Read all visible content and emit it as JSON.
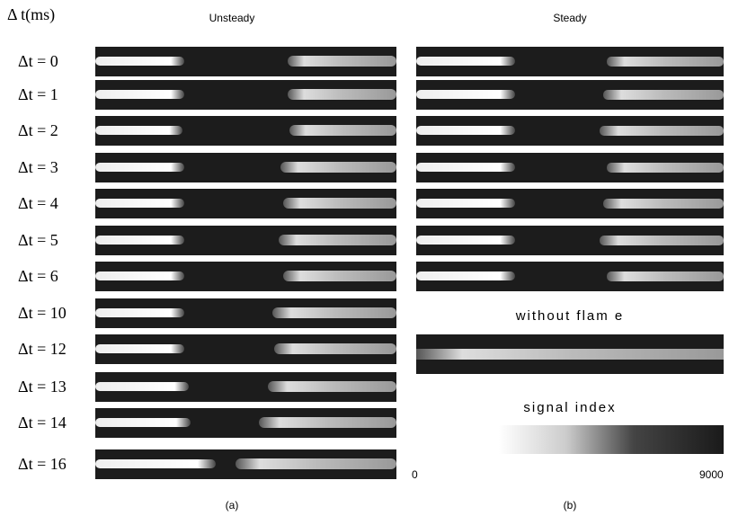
{
  "header": {
    "axis_label": "Δ t(ms)",
    "left_title": "Unsteady",
    "right_title": "Steady"
  },
  "rows": [
    "Δt = 0",
    "Δt = 1",
    "Δt = 2",
    "Δt = 3",
    "Δt = 4",
    "Δt = 5",
    "Δt = 6",
    "Δt = 10",
    "Δt = 12",
    "Δt = 13",
    "Δt = 14",
    "Δt = 16"
  ],
  "without_flame": "without flam e",
  "colorbar": {
    "title": "signal index",
    "min_label": "0",
    "max_label": "9000"
  },
  "captions": {
    "left": "(a)",
    "right": "(b)"
  }
}
